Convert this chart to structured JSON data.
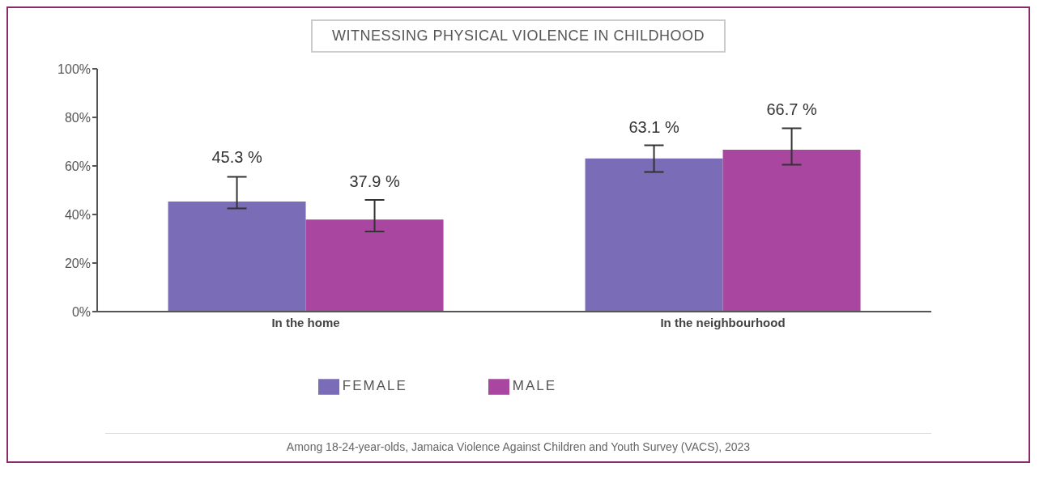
{
  "chart_data": {
    "type": "bar",
    "title": "WITNESSING PHYSICAL VIOLENCE IN CHILDHOOD",
    "categories": [
      "In the home",
      "In the neighbourhood"
    ],
    "series": [
      {
        "name": "FEMALE",
        "color": "#7a6cb6",
        "values": [
          45.3,
          63.1
        ],
        "value_labels": [
          "45.3 %",
          "63.1 %"
        ],
        "errors": [
          [
            42.5,
            55.5
          ],
          [
            57.5,
            68.5
          ]
        ]
      },
      {
        "name": "MALE",
        "color": "#a9469f",
        "values": [
          37.9,
          66.7
        ],
        "value_labels": [
          "37.9 %",
          "66.7 %"
        ],
        "errors": [
          [
            33,
            46
          ],
          [
            60.5,
            75.5
          ]
        ]
      }
    ],
    "ylim": [
      0,
      100
    ],
    "yticks": [
      {
        "value": 0,
        "label": "0%"
      },
      {
        "value": 20,
        "label": "20%"
      },
      {
        "value": 40,
        "label": "40%"
      },
      {
        "value": 60,
        "label": "60%"
      },
      {
        "value": 80,
        "label": "80%"
      },
      {
        "value": 100,
        "label": "100%"
      }
    ],
    "grid": false,
    "legend": "bottom",
    "annotations": [
      "Among 18-24-year-olds, Jamaica Violence Against Children and Youth Survey (VACS), 2023"
    ]
  }
}
